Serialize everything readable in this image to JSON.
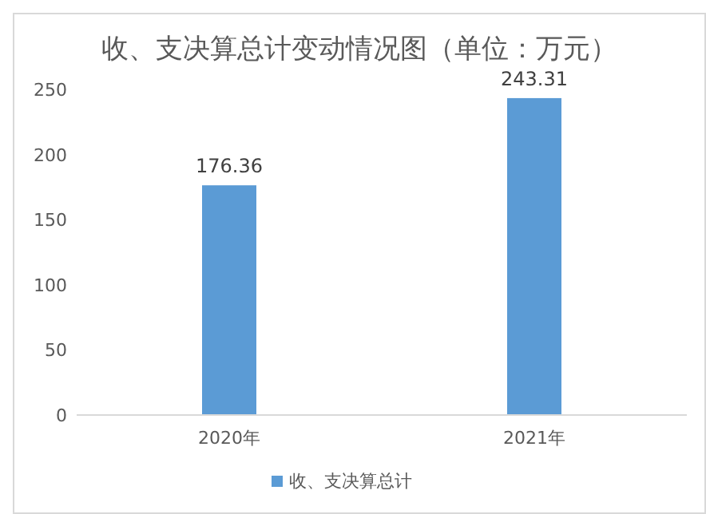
{
  "chart_data": {
    "type": "bar",
    "title": "收、支决算总计变动情况图（单位：万元）",
    "categories": [
      "2020年",
      "2021年"
    ],
    "series": [
      {
        "name": "收、支决算总计",
        "color": "#5b9bd5",
        "values": [
          176.36,
          243.31
        ]
      }
    ],
    "ylim": [
      0,
      250
    ],
    "yticks": [
      0,
      50,
      100,
      150,
      200,
      250
    ],
    "data_labels": true,
    "legend": "bottom",
    "grid": false
  }
}
